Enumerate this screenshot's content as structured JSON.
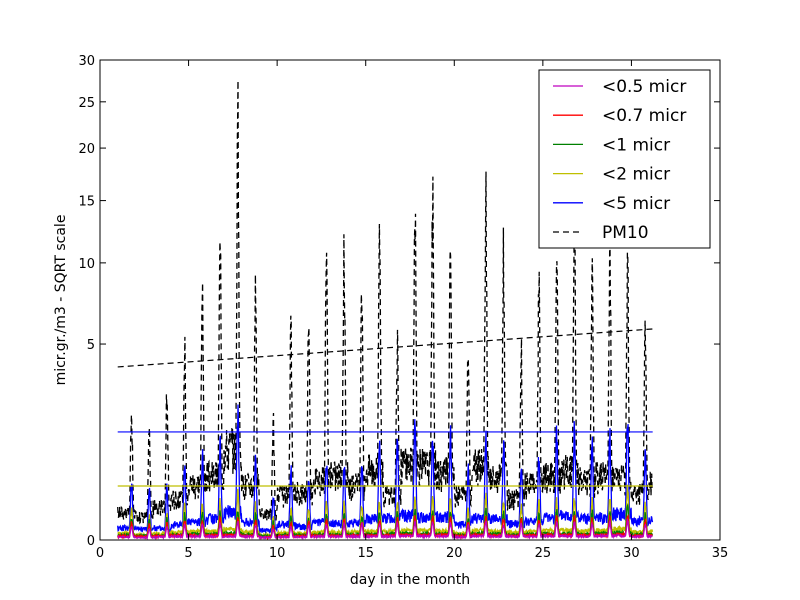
{
  "chart_data": {
    "type": "line",
    "title": "",
    "xlabel": "day in the month",
    "ylabel": "micr.gr./m3 - SQRT scale",
    "y_scale": "sqrt",
    "xlim": [
      0,
      35
    ],
    "ylim": [
      0,
      30
    ],
    "x_ticks": [
      0,
      5,
      10,
      15,
      20,
      25,
      30,
      35
    ],
    "x_tick_labels": [
      "0",
      "5",
      "10",
      "15",
      "20",
      "25",
      "30",
      "35"
    ],
    "y_ticks": [
      0,
      5,
      10,
      15,
      20,
      25,
      30
    ],
    "y_tick_labels": [
      "0",
      "5",
      "10",
      "15",
      "20",
      "25",
      "30"
    ],
    "grid": false,
    "legend_position": "top-right",
    "daily_peaks": {
      "days": [
        1,
        2,
        3,
        4,
        5,
        6,
        7,
        8,
        9,
        10,
        11,
        12,
        13,
        14,
        15,
        16,
        17,
        18,
        19,
        20,
        21,
        22,
        23,
        24,
        25,
        26,
        27,
        28,
        29,
        30,
        31
      ],
      "PM10": [
        2.5,
        1.8,
        3.5,
        5.6,
        10.5,
        13.5,
        28,
        10,
        2.2,
        6.5,
        7.5,
        12.5,
        14,
        9.8,
        16.5,
        6.5,
        19.5,
        18.2,
        15,
        6.8,
        18,
        12.5,
        5.6,
        10.2,
        13.5,
        16.5,
        11.5,
        13.5,
        12.5,
        7.5,
        11
      ],
      "lt5": [
        0.5,
        0.4,
        0.45,
        0.8,
        1.1,
        1.5,
        2.7,
        1.0,
        0.3,
        0.8,
        0.6,
        1.0,
        0.9,
        1.0,
        1.5,
        1.6,
        2.0,
        1.7,
        1.8,
        0.8,
        1.6,
        1.5,
        0.9,
        1.1,
        1.7,
        2.0,
        1.5,
        1.7,
        2.3,
        1.2,
        1.3
      ],
      "lt2": [
        0.15,
        0.1,
        0.12,
        0.2,
        0.22,
        0.25,
        0.4,
        0.2,
        0.08,
        0.15,
        0.15,
        0.2,
        0.2,
        0.2,
        0.25,
        0.25,
        0.3,
        0.28,
        0.28,
        0.15,
        0.3,
        0.25,
        0.18,
        0.22,
        0.28,
        0.3,
        0.25,
        0.3,
        0.4,
        0.2,
        0.25
      ],
      "lt1": [
        0.08,
        0.06,
        0.07,
        0.1,
        0.12,
        0.12,
        0.15,
        0.1,
        0.05,
        0.08,
        0.08,
        0.1,
        0.1,
        0.1,
        0.12,
        0.12,
        0.14,
        0.13,
        0.13,
        0.08,
        0.14,
        0.12,
        0.09,
        0.11,
        0.13,
        0.14,
        0.12,
        0.14,
        0.18,
        0.1,
        0.12
      ],
      "lt07": [
        0.05,
        0.04,
        0.05,
        0.06,
        0.07,
        0.07,
        0.08,
        0.06,
        0.03,
        0.05,
        0.05,
        0.06,
        0.06,
        0.06,
        0.07,
        0.07,
        0.08,
        0.08,
        0.08,
        0.05,
        0.08,
        0.07,
        0.06,
        0.07,
        0.08,
        0.08,
        0.07,
        0.08,
        0.1,
        0.06,
        0.07
      ],
      "lt05": [
        0.03,
        0.02,
        0.03,
        0.04,
        0.04,
        0.04,
        0.05,
        0.04,
        0.02,
        0.03,
        0.03,
        0.04,
        0.04,
        0.04,
        0.04,
        0.04,
        0.05,
        0.05,
        0.05,
        0.03,
        0.05,
        0.04,
        0.04,
        0.04,
        0.05,
        0.05,
        0.04,
        0.05,
        0.06,
        0.04,
        0.04
      ]
    },
    "reference_lines": [
      {
        "series": "PM10",
        "x": [
          1,
          31.2
        ],
        "y": [
          3.9,
          5.8
        ],
        "style": "dashed"
      },
      {
        "series": "<5 micr",
        "x": [
          1,
          31.2
        ],
        "y": [
          1.52,
          1.52
        ],
        "style": "solid"
      },
      {
        "series": "<2 micr",
        "x": [
          1,
          31.2
        ],
        "y": [
          0.38,
          0.38
        ],
        "style": "solid"
      }
    ],
    "series": [
      {
        "name": "<0.5 micr",
        "color": "#bf00bf",
        "key": "lt05",
        "dash": false
      },
      {
        "name": "<0.7 micr",
        "color": "#ff0000",
        "key": "lt07",
        "dash": false
      },
      {
        "name": "<1 micr",
        "color": "#008000",
        "key": "lt1",
        "dash": false
      },
      {
        "name": "<2 micr",
        "color": "#bfbf00",
        "key": "lt2",
        "dash": false
      },
      {
        "name": "<5 micr",
        "color": "#0000ff",
        "key": "lt5",
        "dash": false
      },
      {
        "name": "PM10",
        "color": "#000000",
        "key": "PM10",
        "dash": true
      }
    ]
  }
}
